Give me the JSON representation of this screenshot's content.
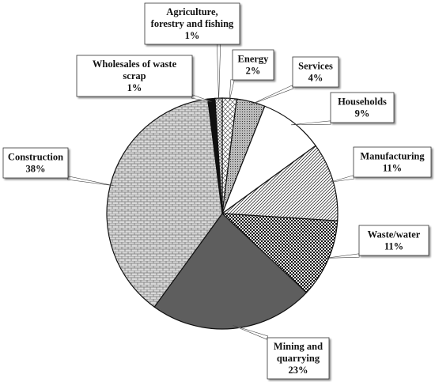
{
  "chart_data": {
    "type": "pie",
    "title": "",
    "start_angle_deg": 0,
    "direction": "clockwise",
    "slices": [
      {
        "key": "energy",
        "label": "Energy",
        "value": 2,
        "pct_label": "2%",
        "pattern": "diamond"
      },
      {
        "key": "services",
        "label": "Services",
        "value": 4,
        "pct_label": "4%",
        "pattern": "dots"
      },
      {
        "key": "households",
        "label": "Households",
        "value": 9,
        "pct_label": "9%",
        "pattern": "white"
      },
      {
        "key": "manufacturing",
        "label": "Manufacturing",
        "value": 11,
        "pct_label": "11%",
        "pattern": "diag"
      },
      {
        "key": "wastewater",
        "label": "Waste/water",
        "value": 11,
        "pct_label": "11%",
        "pattern": "checker"
      },
      {
        "key": "mining",
        "label": "Mining and quarrying",
        "value": 23,
        "pct_label": "23%",
        "pattern": "darkgray"
      },
      {
        "key": "construction",
        "label": "Construction",
        "value": 38,
        "pct_label": "38%",
        "pattern": "brick"
      },
      {
        "key": "wholesales",
        "label": "Wholesales of waste scrap",
        "value": 1,
        "pct_label": "1%",
        "pattern": "black"
      },
      {
        "key": "agriculture",
        "label": "Agriculture, forestry and fishing",
        "value": 1,
        "pct_label": "1%",
        "pattern": "cross"
      }
    ],
    "labels": {
      "energy": [
        "Energy",
        "2%"
      ],
      "services": [
        "Services",
        "4%"
      ],
      "households": [
        "Households",
        "9%"
      ],
      "manufacturing": [
        "Manufacturing",
        "11%"
      ],
      "wastewater": [
        "Waste/water",
        "11%"
      ],
      "mining": [
        "Mining and",
        "quarrying",
        "23%"
      ],
      "construction": [
        "Construction",
        "38%"
      ],
      "wholesales": [
        "Wholesales of waste",
        "scrap",
        "1%"
      ],
      "agriculture": [
        "Agriculture,",
        "forestry and fishing",
        "1%"
      ]
    },
    "legend": "none"
  }
}
